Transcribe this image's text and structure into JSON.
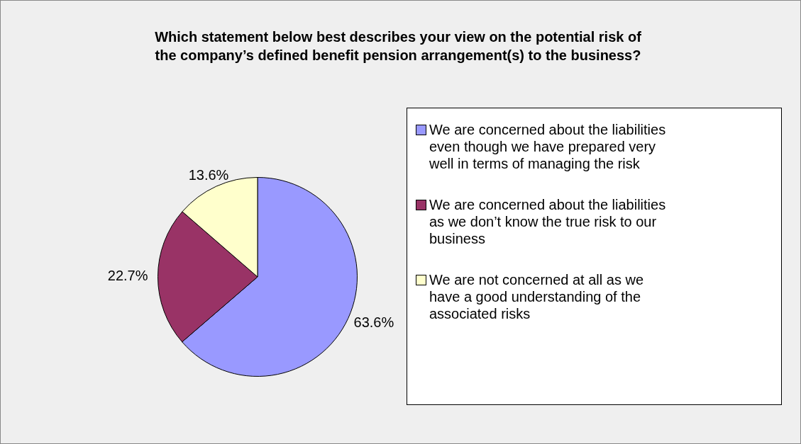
{
  "chart_data": {
    "type": "pie",
    "title": "Which statement below best describes your view on the potential risk of the company’s defined benefit pension arrangement(s) to the business?",
    "categories": [
      "We are concerned about the liabilities even though we have prepared very well in terms of managing the risk",
      "We are concerned about the liabilities as we don’t know the true risk to our business",
      "We are not concerned at all as we have a good understanding of the associated risks"
    ],
    "values": [
      63.6,
      22.7,
      13.6
    ],
    "value_labels": [
      "63.6%",
      "22.7%",
      "13.6%"
    ],
    "colors": [
      "#9999ff",
      "#993366",
      "#ffffcc"
    ],
    "legend": "right"
  }
}
